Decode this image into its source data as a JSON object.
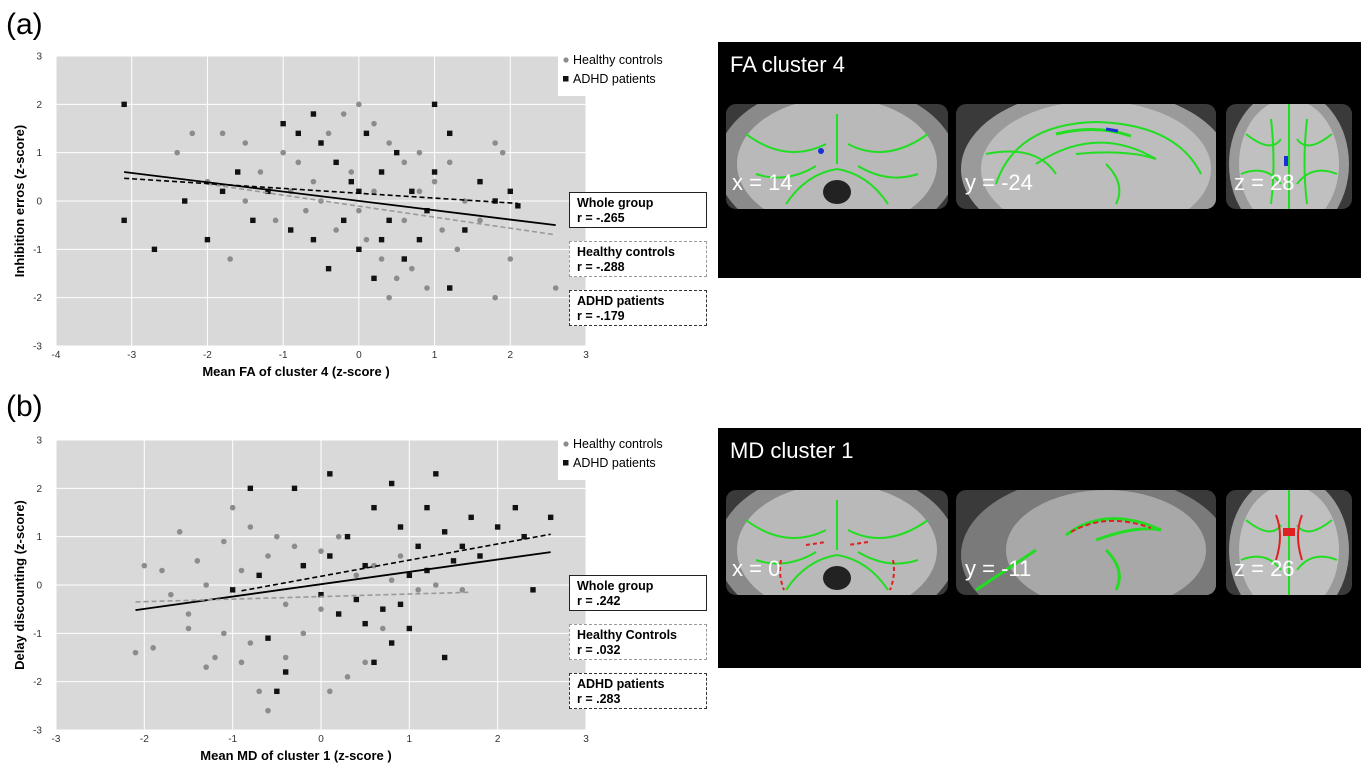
{
  "panels": [
    {
      "letter": "(a)",
      "brain": {
        "title": "FA cluster 4",
        "coords": [
          "x = 14",
          "y = -24",
          "z = 28"
        ],
        "cluster_color": "#1a2fd6"
      },
      "legend": [
        {
          "label": "Healthy controls",
          "marker": "circle",
          "color": "#8c8c8c"
        },
        {
          "label": "ADHD patients",
          "marker": "square",
          "color": "#111111"
        }
      ],
      "stat_boxes": [
        {
          "title": "Whole group",
          "value": "r = -.265",
          "style": "solid"
        },
        {
          "title": "Healthy controls",
          "value": "r = -.288",
          "style": "dashed-grey"
        },
        {
          "title": "ADHD patients",
          "value": "r = -.179",
          "style": "dashed-dark"
        }
      ]
    },
    {
      "letter": "(b)",
      "brain": {
        "title": "MD cluster 1",
        "coords": [
          "x = 0",
          "y = -11",
          "z = 26"
        ],
        "cluster_color": "#e02020"
      },
      "legend": [
        {
          "label": "Healthy controls",
          "marker": "circle",
          "color": "#8c8c8c"
        },
        {
          "label": "ADHD patients",
          "marker": "square",
          "color": "#111111"
        }
      ],
      "stat_boxes": [
        {
          "title": "Whole group",
          "value": "r = .242",
          "style": "solid"
        },
        {
          "title": "Healthy Controls",
          "value": "r = .032",
          "style": "dashed-grey"
        },
        {
          "title": "ADHD patients",
          "value": "r = .283",
          "style": "dashed-dark"
        }
      ]
    }
  ],
  "chart_data": [
    {
      "type": "scatter",
      "xlabel": "Mean FA of cluster 4 (z-score )",
      "ylabel": "Inhibition erros (z-score)",
      "xlim": [
        -4,
        3
      ],
      "ylim": [
        -3,
        3
      ],
      "xticks": [
        -4,
        -3,
        -2,
        -1,
        0,
        1,
        2,
        3
      ],
      "yticks": [
        -3,
        -2,
        -1,
        0,
        1,
        2,
        3
      ],
      "grid": true,
      "legend_position": "top-right",
      "series": [
        {
          "name": "Healthy controls",
          "marker": "circle",
          "color": "#8c8c8c",
          "points": [
            [
              -2.4,
              1.0
            ],
            [
              -2.2,
              1.4
            ],
            [
              -1.8,
              1.4
            ],
            [
              -1.5,
              1.2
            ],
            [
              -1.3,
              0.6
            ],
            [
              -1.0,
              1.0
            ],
            [
              -0.8,
              0.8
            ],
            [
              -0.6,
              0.4
            ],
            [
              -0.4,
              1.4
            ],
            [
              -0.2,
              1.8
            ],
            [
              0.0,
              2.0
            ],
            [
              0.2,
              1.6
            ],
            [
              0.4,
              1.2
            ],
            [
              0.6,
              0.8
            ],
            [
              0.8,
              0.2
            ],
            [
              1.0,
              0.4
            ],
            [
              1.2,
              0.8
            ],
            [
              1.4,
              0.0
            ],
            [
              -1.7,
              -1.2
            ],
            [
              -1.1,
              -0.4
            ],
            [
              -0.7,
              -0.2
            ],
            [
              -0.3,
              -0.6
            ],
            [
              0.1,
              -0.8
            ],
            [
              0.3,
              -1.2
            ],
            [
              0.5,
              -1.6
            ],
            [
              0.7,
              -1.4
            ],
            [
              0.9,
              -1.8
            ],
            [
              1.1,
              -0.6
            ],
            [
              1.3,
              -1.0
            ],
            [
              1.6,
              -0.4
            ],
            [
              1.8,
              -2.0
            ],
            [
              2.0,
              -1.2
            ],
            [
              2.6,
              -1.8
            ],
            [
              0.4,
              -2.0
            ],
            [
              -0.5,
              0.0
            ],
            [
              -0.9,
              0.2
            ],
            [
              0.0,
              -0.2
            ],
            [
              0.6,
              -0.4
            ],
            [
              1.8,
              1.2
            ],
            [
              1.9,
              1.0
            ],
            [
              -2.0,
              0.4
            ],
            [
              -1.5,
              0.0
            ],
            [
              -0.1,
              0.6
            ],
            [
              0.2,
              0.2
            ],
            [
              0.8,
              1.0
            ]
          ]
        },
        {
          "name": "ADHD patients",
          "marker": "square",
          "color": "#111111",
          "points": [
            [
              -3.1,
              2.0
            ],
            [
              -3.1,
              -0.4
            ],
            [
              -2.7,
              -1.0
            ],
            [
              -2.3,
              0.0
            ],
            [
              -2.0,
              -0.8
            ],
            [
              -1.6,
              0.6
            ],
            [
              -1.4,
              -0.4
            ],
            [
              -1.2,
              0.2
            ],
            [
              -1.0,
              1.6
            ],
            [
              -0.8,
              1.4
            ],
            [
              -0.6,
              1.8
            ],
            [
              -0.5,
              1.2
            ],
            [
              -0.3,
              0.8
            ],
            [
              -0.1,
              0.4
            ],
            [
              0.1,
              1.4
            ],
            [
              0.3,
              0.6
            ],
            [
              0.5,
              1.0
            ],
            [
              0.7,
              0.2
            ],
            [
              0.9,
              -0.2
            ],
            [
              1.0,
              2.0
            ],
            [
              1.2,
              1.4
            ],
            [
              1.4,
              -0.6
            ],
            [
              1.6,
              0.4
            ],
            [
              1.8,
              0.0
            ],
            [
              2.0,
              0.2
            ],
            [
              2.1,
              -0.1
            ],
            [
              -0.6,
              -0.8
            ],
            [
              -0.4,
              -1.4
            ],
            [
              0.0,
              -1.0
            ],
            [
              0.2,
              -1.6
            ],
            [
              0.4,
              -0.4
            ],
            [
              0.6,
              -1.2
            ],
            [
              0.8,
              -0.8
            ],
            [
              1.2,
              -1.8
            ],
            [
              -1.8,
              0.2
            ],
            [
              -0.9,
              -0.6
            ],
            [
              0.0,
              0.2
            ],
            [
              -0.2,
              -0.4
            ],
            [
              1.0,
              0.6
            ],
            [
              0.3,
              -0.8
            ]
          ]
        }
      ],
      "regression": [
        {
          "name": "Whole group",
          "style": "solid",
          "color": "#000000",
          "from": [
            -3.1,
            0.6
          ],
          "to": [
            2.6,
            -0.5
          ]
        },
        {
          "name": "Healthy controls",
          "style": "dashed",
          "color": "#9a9a9a",
          "from": [
            -2.0,
            0.35
          ],
          "to": [
            2.6,
            -0.7
          ]
        },
        {
          "name": "ADHD patients",
          "style": "dashed",
          "color": "#000000",
          "from": [
            -3.1,
            0.47
          ],
          "to": [
            2.1,
            -0.05
          ]
        }
      ]
    },
    {
      "type": "scatter",
      "xlabel": "Mean MD of cluster 1 (z-score )",
      "ylabel": "Delay discounting (z-score)",
      "xlim": [
        -3,
        3
      ],
      "ylim": [
        -3,
        3
      ],
      "xticks": [
        -3,
        -2,
        -1,
        0,
        1,
        2,
        3
      ],
      "yticks": [
        -3,
        -2,
        -1,
        0,
        1,
        2,
        3
      ],
      "grid": true,
      "legend_position": "top-right",
      "series": [
        {
          "name": "Healthy controls",
          "marker": "circle",
          "color": "#8c8c8c",
          "points": [
            [
              -2.1,
              -1.4
            ],
            [
              -1.9,
              -1.3
            ],
            [
              -1.8,
              0.3
            ],
            [
              -1.6,
              1.1
            ],
            [
              -1.5,
              -0.9
            ],
            [
              -1.4,
              0.5
            ],
            [
              -1.3,
              -1.7
            ],
            [
              -1.2,
              -1.5
            ],
            [
              -1.1,
              0.9
            ],
            [
              -1.0,
              1.6
            ],
            [
              -0.9,
              -1.6
            ],
            [
              -0.8,
              1.2
            ],
            [
              -0.7,
              -2.2
            ],
            [
              -0.6,
              -2.6
            ],
            [
              -0.5,
              1.0
            ],
            [
              -0.4,
              -0.4
            ],
            [
              -0.3,
              0.8
            ],
            [
              -0.2,
              -1.0
            ],
            [
              0.0,
              0.7
            ],
            [
              0.1,
              -2.2
            ],
            [
              0.3,
              -1.9
            ],
            [
              0.5,
              -1.6
            ],
            [
              0.7,
              -0.9
            ],
            [
              0.9,
              0.6
            ],
            [
              1.1,
              -0.1
            ],
            [
              -1.3,
              0.0
            ],
            [
              -0.9,
              0.3
            ],
            [
              -0.6,
              0.6
            ],
            [
              -0.2,
              0.4
            ],
            [
              0.4,
              0.2
            ],
            [
              0.8,
              0.1
            ],
            [
              -1.7,
              -0.2
            ],
            [
              -2.0,
              0.4
            ],
            [
              -1.1,
              -1.0
            ],
            [
              0.2,
              1.0
            ],
            [
              0.6,
              0.4
            ],
            [
              -0.8,
              -1.2
            ],
            [
              -1.5,
              -0.6
            ],
            [
              -0.4,
              -1.5
            ],
            [
              0.0,
              -0.5
            ],
            [
              1.3,
              0.0
            ],
            [
              1.6,
              -0.1
            ]
          ]
        },
        {
          "name": "ADHD patients",
          "marker": "square",
          "color": "#111111",
          "points": [
            [
              -0.8,
              2.0
            ],
            [
              -0.3,
              2.0
            ],
            [
              0.1,
              2.3
            ],
            [
              0.3,
              1.0
            ],
            [
              0.5,
              0.4
            ],
            [
              0.6,
              1.6
            ],
            [
              0.7,
              -0.5
            ],
            [
              0.8,
              2.1
            ],
            [
              0.9,
              1.2
            ],
            [
              1.0,
              0.2
            ],
            [
              1.1,
              0.8
            ],
            [
              1.2,
              1.6
            ],
            [
              1.3,
              2.3
            ],
            [
              1.4,
              1.1
            ],
            [
              1.5,
              0.5
            ],
            [
              1.6,
              0.8
            ],
            [
              1.7,
              1.4
            ],
            [
              1.8,
              0.6
            ],
            [
              2.0,
              1.2
            ],
            [
              2.2,
              1.6
            ],
            [
              2.3,
              1.0
            ],
            [
              2.4,
              -0.1
            ],
            [
              2.6,
              1.4
            ],
            [
              -0.6,
              -1.1
            ],
            [
              -0.4,
              -1.8
            ],
            [
              -0.2,
              0.4
            ],
            [
              0.0,
              -0.2
            ],
            [
              0.2,
              -0.6
            ],
            [
              0.4,
              -0.3
            ],
            [
              0.6,
              -1.6
            ],
            [
              0.8,
              -1.2
            ],
            [
              1.0,
              -0.9
            ],
            [
              1.4,
              -1.5
            ],
            [
              -0.5,
              -2.2
            ],
            [
              -1.0,
              -0.1
            ],
            [
              -0.7,
              0.2
            ],
            [
              0.1,
              0.6
            ],
            [
              0.5,
              -0.8
            ],
            [
              1.2,
              0.3
            ],
            [
              0.9,
              -0.4
            ]
          ]
        }
      ],
      "regression": [
        {
          "name": "Whole group",
          "style": "solid",
          "color": "#000000",
          "from": [
            -2.1,
            -0.52
          ],
          "to": [
            2.6,
            0.68
          ]
        },
        {
          "name": "Healthy controls",
          "style": "dashed",
          "color": "#9a9a9a",
          "from": [
            -2.1,
            -0.35
          ],
          "to": [
            1.7,
            -0.15
          ]
        },
        {
          "name": "ADHD patients",
          "style": "dashed",
          "color": "#000000",
          "from": [
            -0.9,
            -0.12
          ],
          "to": [
            2.6,
            1.05
          ]
        }
      ]
    }
  ]
}
